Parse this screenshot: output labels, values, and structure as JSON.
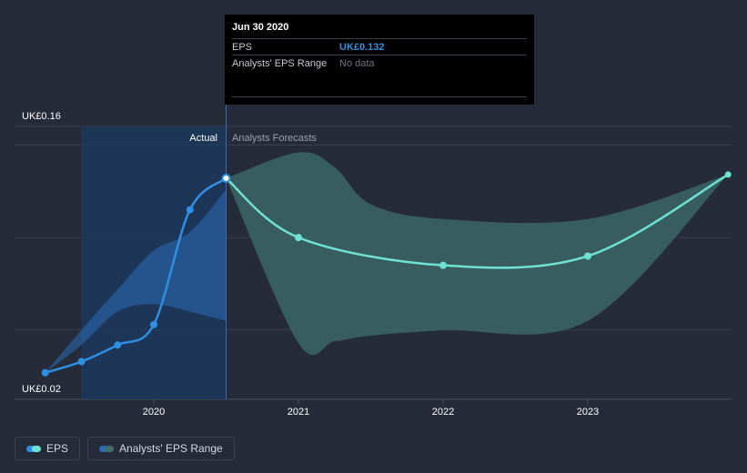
{
  "tooltip": {
    "date": "Jun 30 2020",
    "eps_label": "EPS",
    "eps_value": "UK£0.132",
    "range_label": "Analysts' EPS Range",
    "range_value": "No data"
  },
  "legend": {
    "eps_label": "EPS",
    "range_label": "Analysts' EPS Range"
  },
  "colors": {
    "background": "#252b38",
    "eps_actual": "#2e8fe3",
    "eps_forecast": "#6fe3d3",
    "range_actual": "#2a6db8",
    "range_forecast": "#3f6f6b",
    "actual_region": "#1b3960"
  },
  "chart_data": {
    "type": "line",
    "y_axis_labels": [
      "UK£0.16",
      "UK£0.02"
    ],
    "ylim": [
      0.02,
      0.16
    ],
    "x_ticks": [
      2020,
      2021,
      2022,
      2023
    ],
    "xlim": [
      2019.25,
      2023.97
    ],
    "divider_x": 2020.5,
    "region_labels": {
      "actual": "Actual",
      "forecast": "Analysts Forecasts"
    },
    "grid": true,
    "series": [
      {
        "name": "EPS",
        "kind": "actual",
        "x": [
          2019.25,
          2019.5,
          2019.75,
          2020.0,
          2020.25,
          2020.5
        ],
        "values": [
          0.027,
          0.033,
          0.042,
          0.053,
          0.115,
          0.132
        ]
      },
      {
        "name": "EPS",
        "kind": "forecast",
        "x": [
          2020.5,
          2021.0,
          2022.0,
          2023.0,
          2023.97
        ],
        "values": [
          0.132,
          0.1,
          0.085,
          0.09,
          0.134
        ]
      }
    ],
    "range_actual": {
      "x": [
        2019.25,
        2019.5,
        2019.75,
        2020.0,
        2020.25,
        2020.5
      ],
      "upper": [
        0.027,
        0.05,
        0.072,
        0.093,
        0.103,
        0.126
      ],
      "lower": [
        0.027,
        0.042,
        0.06,
        0.064,
        0.06,
        0.055
      ]
    },
    "range_forecast": {
      "x": [
        2020.5,
        2021.0,
        2021.25,
        2021.5,
        2022.0,
        2023.0,
        2023.97
      ],
      "upper": [
        0.132,
        0.146,
        0.138,
        0.118,
        0.11,
        0.11,
        0.134
      ],
      "lower": [
        0.132,
        0.043,
        0.044,
        0.047,
        0.05,
        0.055,
        0.134
      ]
    }
  }
}
